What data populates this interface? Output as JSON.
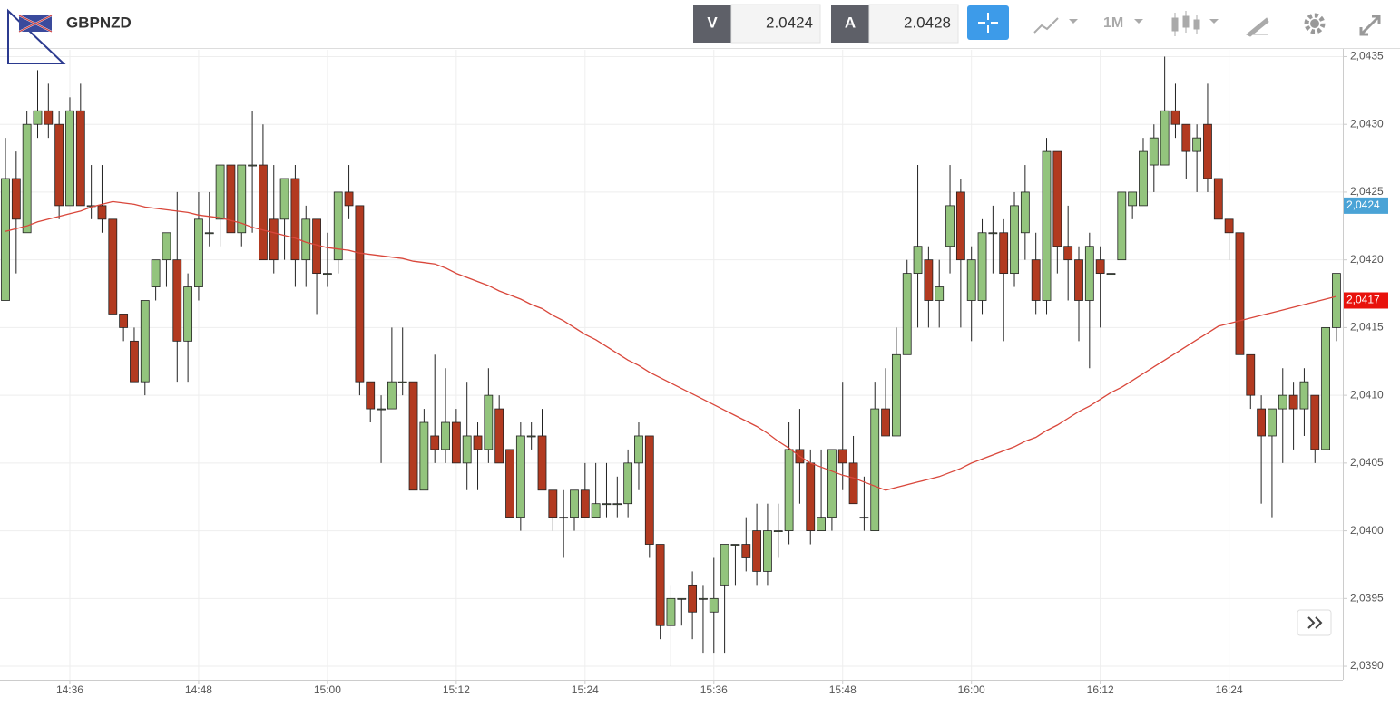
{
  "header": {
    "symbol": "GBPNZD",
    "bid_label": "V",
    "bid": 2.0424,
    "ask_label": "A",
    "ask": 2.0428,
    "timeframe": "1M"
  },
  "chart_data": {
    "type": "candlestick",
    "categories": [
      null,
      null,
      null,
      null,
      null,
      null,
      "14:36",
      null,
      null,
      null,
      null,
      null,
      null,
      null,
      null,
      null,
      null,
      null,
      "14:48",
      null,
      null,
      null,
      null,
      null,
      null,
      null,
      null,
      null,
      null,
      null,
      "15:00",
      null,
      null,
      null,
      null,
      null,
      null,
      null,
      null,
      null,
      null,
      null,
      "15:12",
      null,
      null,
      null,
      null,
      null,
      null,
      null,
      null,
      null,
      null,
      null,
      "15:24",
      null,
      null,
      null,
      null,
      null,
      null,
      null,
      null,
      null,
      null,
      null,
      "15:36",
      null,
      null,
      null,
      null,
      null,
      null,
      null,
      null,
      null,
      null,
      null,
      "15:48",
      null,
      null,
      null,
      null,
      null,
      null,
      null,
      null,
      null,
      null,
      null,
      "16:00",
      null,
      null,
      null,
      null,
      null,
      null,
      null,
      null,
      null,
      null,
      null,
      "16:12",
      null,
      null,
      null,
      null,
      null,
      null,
      null,
      null,
      null,
      null,
      null,
      "16:24",
      null,
      null,
      null,
      null,
      null,
      null,
      null,
      null,
      null,
      null
    ],
    "open": [
      2.0417,
      2.0426,
      2.0422,
      2.043,
      2.0431,
      2.043,
      2.0424,
      2.0431,
      2.0424,
      2.0424,
      2.0423,
      2.0416,
      2.0414,
      2.0411,
      2.0418,
      2.042,
      2.042,
      2.0414,
      2.0418,
      2.0422,
      2.0423,
      2.0427,
      2.0422,
      2.0427,
      2.0427,
      2.0423,
      2.0423,
      2.0426,
      2.042,
      2.0423,
      2.0419,
      2.042,
      2.0425,
      2.0424,
      2.0411,
      2.0409,
      2.0409,
      2.0411,
      2.0411,
      2.0403,
      2.0407,
      2.0406,
      2.0408,
      2.0405,
      2.0407,
      2.0406,
      2.0409,
      2.0406,
      2.0401,
      2.0407,
      2.0407,
      2.0403,
      2.0401,
      2.0401,
      2.0403,
      2.0401,
      2.0402,
      2.0402,
      2.0402,
      2.0405,
      2.0407,
      2.0399,
      2.0393,
      2.0395,
      2.0396,
      2.0395,
      2.0394,
      2.0396,
      2.0399,
      2.0399,
      2.04,
      2.0397,
      2.04,
      2.04,
      2.0406,
      2.0405,
      2.04,
      2.0401,
      2.0406,
      2.0405,
      2.0401,
      2.04,
      2.0409,
      2.0407,
      2.0413,
      2.0419,
      2.042,
      2.0417,
      2.0421,
      2.0425,
      2.0417,
      2.0417,
      2.0422,
      2.0422,
      2.0419,
      2.0422,
      2.042,
      2.0417,
      2.0428,
      2.0421,
      2.042,
      2.0417,
      2.042,
      2.0419,
      2.042,
      2.0424,
      2.0424,
      2.0427,
      2.0427,
      2.0431,
      2.043,
      2.0428,
      2.043,
      2.0426,
      2.0423,
      2.0422,
      2.0413,
      2.0409,
      2.0407,
      2.0409,
      2.041,
      2.0409,
      2.041,
      2.0406,
      2.0415
    ],
    "high": [
      2.0429,
      2.0428,
      2.0431,
      2.0434,
      2.0433,
      2.0431,
      2.0432,
      2.0433,
      2.0427,
      2.0427,
      2.0423,
      2.0416,
      2.0415,
      2.0417,
      2.042,
      2.0422,
      2.0425,
      2.0419,
      2.0425,
      2.0425,
      2.0427,
      2.0427,
      2.0427,
      2.0431,
      2.043,
      2.0427,
      2.0426,
      2.0427,
      2.0424,
      2.0423,
      2.0422,
      2.0425,
      2.0427,
      2.0424,
      2.0411,
      2.041,
      2.0415,
      2.0415,
      2.0411,
      2.0409,
      2.0413,
      2.0412,
      2.0409,
      2.0411,
      2.0408,
      2.0412,
      2.041,
      2.0406,
      2.0408,
      2.0408,
      2.0409,
      2.0403,
      2.0403,
      2.0403,
      2.0405,
      2.0405,
      2.0405,
      2.0404,
      2.0406,
      2.0408,
      2.0407,
      2.0399,
      2.0396,
      2.0395,
      2.0397,
      2.0396,
      2.0398,
      2.0399,
      2.0399,
      2.0401,
      2.0402,
      2.0402,
      2.0402,
      2.0408,
      2.0409,
      2.0406,
      2.0406,
      2.0406,
      2.0411,
      2.0407,
      2.0404,
      2.0411,
      2.0412,
      2.0415,
      2.042,
      2.0427,
      2.0421,
      2.042,
      2.0427,
      2.0426,
      2.0421,
      2.0423,
      2.0424,
      2.0423,
      2.0425,
      2.0427,
      2.0422,
      2.0429,
      2.0428,
      2.0424,
      2.0421,
      2.0422,
      2.0421,
      2.042,
      2.0425,
      2.0425,
      2.0429,
      2.043,
      2.0435,
      2.0433,
      2.043,
      2.043,
      2.0433,
      2.0426,
      2.0423,
      2.0422,
      2.0413,
      2.041,
      2.0409,
      2.0412,
      2.0411,
      2.0412,
      2.041,
      2.0415,
      2.0419
    ],
    "low": [
      2.0417,
      2.0419,
      2.0422,
      2.0429,
      2.0429,
      2.0423,
      2.0424,
      2.0424,
      2.0423,
      2.0422,
      2.0416,
      2.0414,
      2.0411,
      2.041,
      2.0417,
      2.0418,
      2.0411,
      2.0411,
      2.0417,
      2.0421,
      2.0421,
      2.0422,
      2.0421,
      2.0422,
      2.042,
      2.0419,
      2.042,
      2.0418,
      2.0418,
      2.0416,
      2.0418,
      2.0419,
      2.0423,
      2.041,
      2.0408,
      2.0405,
      2.0409,
      2.041,
      2.0403,
      2.0403,
      2.0405,
      2.0405,
      2.0405,
      2.0403,
      2.0403,
      2.0405,
      2.0405,
      2.0401,
      2.04,
      2.0406,
      2.0403,
      2.04,
      2.0398,
      2.04,
      2.0401,
      2.0401,
      2.0401,
      2.0401,
      2.0401,
      2.0403,
      2.0398,
      2.0392,
      2.039,
      2.0393,
      2.0392,
      2.0391,
      2.0391,
      2.0391,
      2.0396,
      2.0397,
      2.0396,
      2.0396,
      2.0398,
      2.0399,
      2.0402,
      2.0399,
      2.04,
      2.04,
      2.0403,
      2.0402,
      2.04,
      2.04,
      2.0407,
      2.0407,
      2.0413,
      2.0415,
      2.0415,
      2.0415,
      2.0419,
      2.0415,
      2.0414,
      2.0416,
      2.0419,
      2.0414,
      2.0418,
      2.042,
      2.0416,
      2.0416,
      2.0419,
      2.0417,
      2.0414,
      2.0412,
      2.0415,
      2.0418,
      2.042,
      2.0423,
      2.0424,
      2.0425,
      2.0427,
      2.0429,
      2.0426,
      2.0425,
      2.0425,
      2.0423,
      2.042,
      2.0413,
      2.0409,
      2.0402,
      2.0401,
      2.0405,
      2.0406,
      2.0407,
      2.0405,
      2.0406,
      2.0414
    ],
    "close": [
      2.0426,
      2.0423,
      2.043,
      2.0431,
      2.043,
      2.0424,
      2.0431,
      2.0424,
      2.0424,
      2.0423,
      2.0416,
      2.0415,
      2.0411,
      2.0417,
      2.042,
      2.0422,
      2.0414,
      2.0418,
      2.0423,
      2.0422,
      2.0427,
      2.0422,
      2.0427,
      2.0427,
      2.042,
      2.042,
      2.0426,
      2.042,
      2.0423,
      2.0419,
      2.0419,
      2.0425,
      2.0424,
      2.0411,
      2.0409,
      2.0409,
      2.0411,
      2.0411,
      2.0403,
      2.0408,
      2.0406,
      2.0408,
      2.0405,
      2.0407,
      2.0406,
      2.041,
      2.0405,
      2.0401,
      2.0407,
      2.0407,
      2.0403,
      2.0401,
      2.0401,
      2.0403,
      2.0401,
      2.0402,
      2.0402,
      2.0402,
      2.0405,
      2.0407,
      2.0399,
      2.0393,
      2.0395,
      2.0395,
      2.0394,
      2.0395,
      2.0395,
      2.0399,
      2.0399,
      2.0398,
      2.0397,
      2.04,
      2.04,
      2.0406,
      2.0405,
      2.04,
      2.0401,
      2.0406,
      2.0405,
      2.0402,
      2.0401,
      2.0409,
      2.0407,
      2.0413,
      2.0419,
      2.0421,
      2.0417,
      2.0418,
      2.0424,
      2.042,
      2.042,
      2.0422,
      2.0422,
      2.0419,
      2.0424,
      2.0425,
      2.0417,
      2.0428,
      2.0421,
      2.042,
      2.0417,
      2.0421,
      2.0419,
      2.0419,
      2.0425,
      2.0425,
      2.0428,
      2.0429,
      2.0431,
      2.043,
      2.0428,
      2.0429,
      2.0426,
      2.0423,
      2.0422,
      2.0413,
      2.041,
      2.0407,
      2.0409,
      2.041,
      2.0409,
      2.0411,
      2.0406,
      2.0415,
      2.0419
    ],
    "up_color": "#93c47d",
    "down_color": "#b23a20",
    "overlay": {
      "color": "#d9473b",
      "values": [
        2.04221,
        2.04223,
        2.04225,
        2.04228,
        2.0423,
        2.04232,
        2.04234,
        2.04236,
        2.04239,
        2.04241,
        2.04243,
        2.04242,
        2.04241,
        2.04239,
        2.04238,
        2.04237,
        2.04236,
        2.04235,
        2.04233,
        2.04232,
        2.04231,
        2.04229,
        2.04227,
        2.04224,
        2.04222,
        2.0422,
        2.04218,
        2.04216,
        2.04213,
        2.04211,
        2.04209,
        2.04208,
        2.04207,
        2.04205,
        2.04204,
        2.04203,
        2.04202,
        2.04201,
        2.04199,
        2.04198,
        2.04197,
        2.04194,
        2.0419,
        2.04187,
        2.04184,
        2.04181,
        2.04177,
        2.04174,
        2.04171,
        2.04167,
        2.04164,
        2.04159,
        2.04155,
        2.0415,
        2.04145,
        2.04141,
        2.04136,
        2.04131,
        2.04126,
        2.04122,
        2.04117,
        2.04113,
        2.04109,
        2.04105,
        2.04101,
        2.04097,
        2.04093,
        2.04089,
        2.04085,
        2.04081,
        2.04077,
        2.04072,
        2.04066,
        2.04061,
        2.04055,
        2.0405,
        2.04047,
        2.04044,
        2.04041,
        2.04039,
        2.04036,
        2.04033,
        2.0403,
        2.04032,
        2.04034,
        2.04036,
        2.04038,
        2.0404,
        2.04043,
        2.04046,
        2.0405,
        2.04053,
        2.04056,
        2.04059,
        2.04062,
        2.04066,
        2.04069,
        2.04074,
        2.04078,
        2.04083,
        2.04088,
        2.04092,
        2.04097,
        2.04102,
        2.04106,
        2.04111,
        2.04116,
        2.04121,
        2.04126,
        2.04131,
        2.04136,
        2.04141,
        2.04146,
        2.04151,
        2.04153,
        2.04155,
        2.04157,
        2.04159,
        2.04161,
        2.04163,
        2.04165,
        2.04167,
        2.04169,
        2.04171,
        2.04173
      ]
    },
    "ylim": [
      2.0389,
      2.04355
    ],
    "yticks": [
      {
        "value": 2.039,
        "label": "2,0390"
      },
      {
        "value": 2.0395,
        "label": "2,0395"
      },
      {
        "value": 2.04,
        "label": "2,0400"
      },
      {
        "value": 2.0405,
        "label": "2,0405"
      },
      {
        "value": 2.041,
        "label": "2,0410"
      },
      {
        "value": 2.0415,
        "label": "2,0415"
      },
      {
        "value": 2.042,
        "label": "2,0420"
      },
      {
        "value": 2.0425,
        "label": "2,0425"
      },
      {
        "value": 2.043,
        "label": "2,0430"
      },
      {
        "value": 2.0435,
        "label": "2,0435"
      }
    ],
    "grid": true,
    "price_labels": [
      {
        "value": 2.0424,
        "label": "2,0424",
        "color": "#4aa3d6"
      },
      {
        "value": 2.0417,
        "label": "2,0417",
        "color": "#e8120c"
      }
    ]
  }
}
